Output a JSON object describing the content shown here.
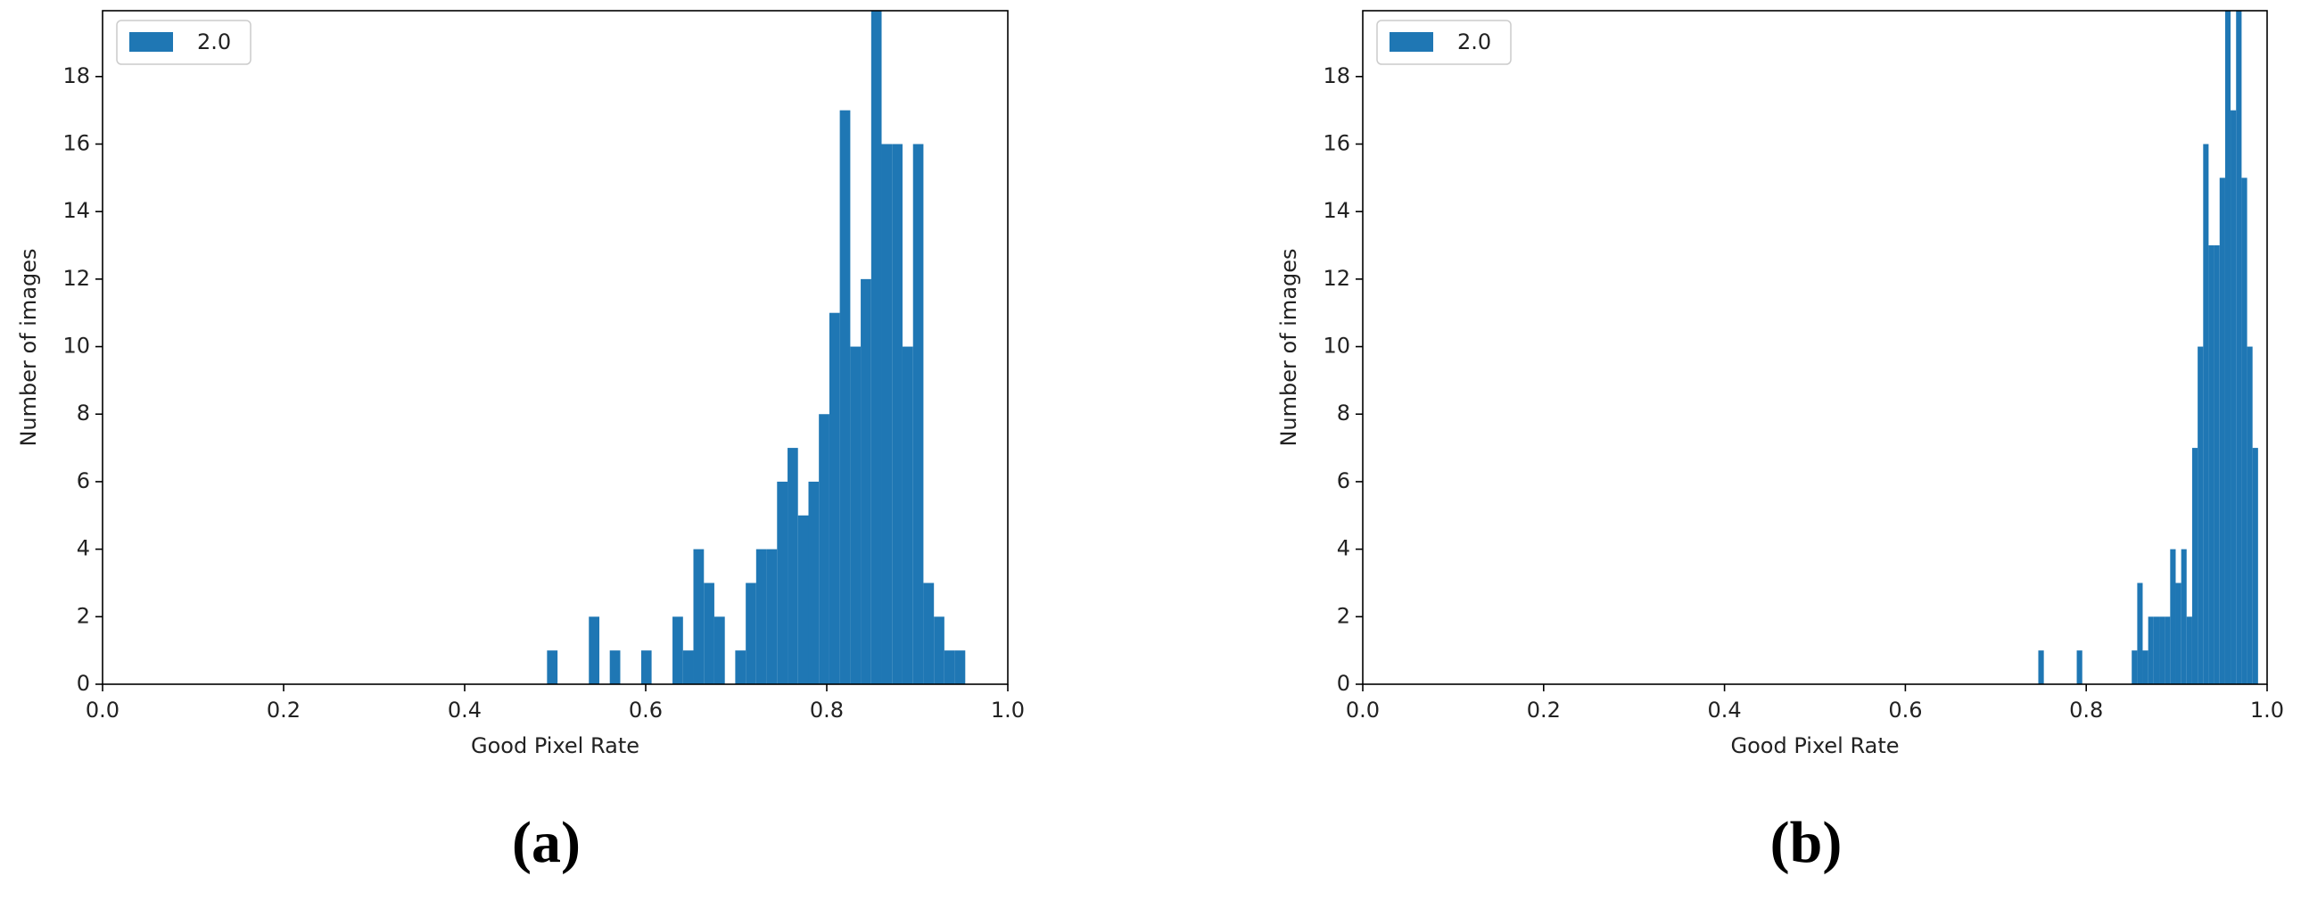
{
  "chart_data": [
    {
      "type": "histogram",
      "caption": "(a)",
      "xlabel": "Good Pixel Rate",
      "ylabel": "Number of images",
      "legend": "upper left",
      "bins": [
        0.491,
        0.5026,
        0.5141,
        0.5257,
        0.5372,
        0.5488,
        0.5603,
        0.5719,
        0.5834,
        0.595,
        0.6065,
        0.6181,
        0.6296,
        0.6412,
        0.6527,
        0.6643,
        0.6758,
        0.6874,
        0.6989,
        0.7105,
        0.722,
        0.7336,
        0.7451,
        0.7567,
        0.7682,
        0.7798,
        0.7913,
        0.8029,
        0.8144,
        0.826,
        0.8375,
        0.8491,
        0.8606,
        0.8722,
        0.8837,
        0.8953,
        0.9068,
        0.9184,
        0.9299,
        0.9415,
        0.953
      ],
      "series": [
        {
          "name": "2.0",
          "color": "#1f77b4",
          "values": [
            1,
            0,
            0,
            0,
            2,
            0,
            1,
            0,
            0,
            1,
            0,
            0,
            2,
            1,
            4,
            3,
            2,
            0,
            1,
            3,
            4,
            4,
            6,
            7,
            5,
            6,
            8,
            11,
            17,
            10,
            12,
            20,
            16,
            16,
            10,
            16,
            3,
            2,
            1,
            1
          ]
        }
      ],
      "xlim": [
        0,
        1
      ],
      "xticks": [
        {
          "value": 0,
          "label": "0.0"
        },
        0.2,
        0.4,
        0.6,
        0.8,
        {
          "value": 1,
          "label": "1.0"
        }
      ],
      "ylim": [
        0,
        19.95
      ],
      "yticks": [
        0,
        2,
        4,
        6,
        8,
        10,
        12,
        14,
        16,
        18
      ]
    },
    {
      "type": "histogram",
      "caption": "(b)",
      "xlabel": "Good Pixel Rate",
      "ylabel": "Number of images",
      "legend": "upper left",
      "bins": [
        0.747,
        0.7531,
        0.7592,
        0.7652,
        0.7713,
        0.7774,
        0.7835,
        0.7895,
        0.7956,
        0.8017,
        0.8078,
        0.8138,
        0.8199,
        0.826,
        0.8321,
        0.8381,
        0.8442,
        0.8503,
        0.8564,
        0.8624,
        0.8685,
        0.8746,
        0.8807,
        0.8867,
        0.8928,
        0.8989,
        0.905,
        0.911,
        0.9171,
        0.9232,
        0.9293,
        0.9353,
        0.9414,
        0.9475,
        0.9536,
        0.9596,
        0.9657,
        0.9718,
        0.9779,
        0.9839,
        0.99
      ],
      "series": [
        {
          "name": "2.0",
          "color": "#1f77b4",
          "values": [
            1,
            0,
            0,
            0,
            0,
            0,
            0,
            1,
            0,
            0,
            0,
            0,
            0,
            0,
            0,
            0,
            0,
            1,
            3,
            1,
            2,
            2,
            2,
            2,
            4,
            3,
            4,
            2,
            7,
            10,
            16,
            13,
            13,
            15,
            20,
            17,
            20,
            15,
            10,
            7
          ]
        }
      ],
      "xlim": [
        0,
        1
      ],
      "xticks": [
        {
          "value": 0,
          "label": "0.0"
        },
        0.2,
        0.4,
        0.6,
        0.8,
        {
          "value": 1,
          "label": "1.0"
        }
      ],
      "ylim": [
        0,
        19.95
      ],
      "yticks": [
        0,
        2,
        4,
        6,
        8,
        10,
        12,
        14,
        16,
        18
      ]
    }
  ]
}
